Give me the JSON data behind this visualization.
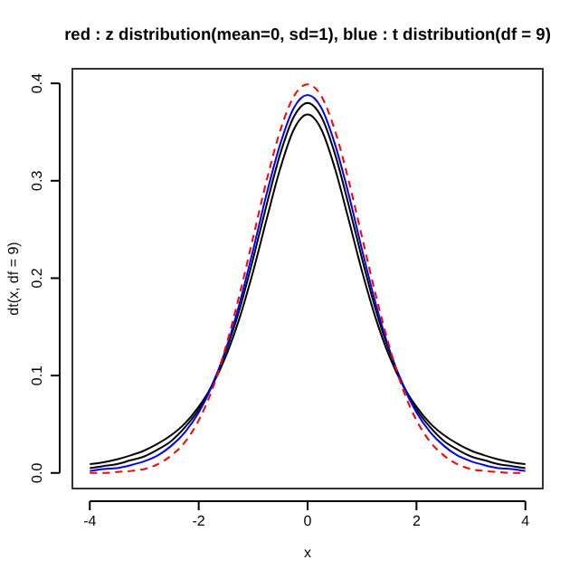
{
  "chart_data": {
    "type": "line",
    "title": "red : z distribution(mean=0, sd=1),  blue : t distribution(df = 9)",
    "xlabel": "x",
    "ylabel": "dt(x, df = 9)",
    "x": [
      -4,
      -3.75,
      -3.5,
      -3.25,
      -3,
      -2.75,
      -2.5,
      -2.25,
      -2,
      -1.75,
      -1.5,
      -1.25,
      -1,
      -0.75,
      -0.5,
      -0.25,
      0,
      0.25,
      0.5,
      0.75,
      1,
      1.25,
      1.5,
      1.75,
      2,
      2.25,
      2.5,
      2.75,
      3,
      3.25,
      3.5,
      3.75,
      4
    ],
    "xlim": [
      -4.32,
      4.32
    ],
    "ylim": [
      -0.016,
      0.415
    ],
    "xticks": [
      -4,
      -2,
      0,
      2,
      4
    ],
    "yticks": [
      {
        "value": 0,
        "label": "0.0"
      },
      0.1,
      0.2,
      0.3,
      0.4
    ],
    "grid": false,
    "marker": "none",
    "series": [
      {
        "color": "#000000",
        "line_style": "solid",
        "values": [
          0.009,
          0.011,
          0.014,
          0.018,
          0.023,
          0.03,
          0.039,
          0.051,
          0.068,
          0.09,
          0.12,
          0.159,
          0.207,
          0.261,
          0.313,
          0.353,
          0.368,
          0.353,
          0.313,
          0.261,
          0.207,
          0.159,
          0.12,
          0.09,
          0.068,
          0.051,
          0.039,
          0.03,
          0.023,
          0.018,
          0.014,
          0.011,
          0.009
        ]
      },
      {
        "color": "#000000",
        "line_style": "solid",
        "values": [
          0.005,
          0.007,
          0.009,
          0.013,
          0.017,
          0.024,
          0.033,
          0.047,
          0.065,
          0.091,
          0.125,
          0.168,
          0.22,
          0.276,
          0.328,
          0.366,
          0.38,
          0.366,
          0.328,
          0.276,
          0.22,
          0.168,
          0.125,
          0.091,
          0.065,
          0.047,
          0.033,
          0.024,
          0.017,
          0.013,
          0.009,
          0.007,
          0.005
        ]
      },
      {
        "color": "#0000ff",
        "line_style": "solid",
        "values": [
          0.002,
          0.004,
          0.005,
          0.008,
          0.012,
          0.018,
          0.028,
          0.042,
          0.062,
          0.09,
          0.127,
          0.174,
          0.229,
          0.287,
          0.338,
          0.375,
          0.388,
          0.375,
          0.338,
          0.287,
          0.229,
          0.174,
          0.127,
          0.09,
          0.062,
          0.042,
          0.028,
          0.018,
          0.012,
          0.008,
          0.005,
          0.004,
          0.002
        ]
      },
      {
        "color": "#ff0000",
        "line_style": "dashed",
        "values": [
          0.0,
          0.0,
          0.001,
          0.002,
          0.004,
          0.009,
          0.018,
          0.032,
          0.054,
          0.086,
          0.13,
          0.183,
          0.242,
          0.301,
          0.352,
          0.387,
          0.399,
          0.387,
          0.352,
          0.301,
          0.242,
          0.183,
          0.13,
          0.086,
          0.054,
          0.032,
          0.018,
          0.009,
          0.004,
          0.002,
          0.001,
          0.0,
          0.0
        ]
      }
    ]
  }
}
